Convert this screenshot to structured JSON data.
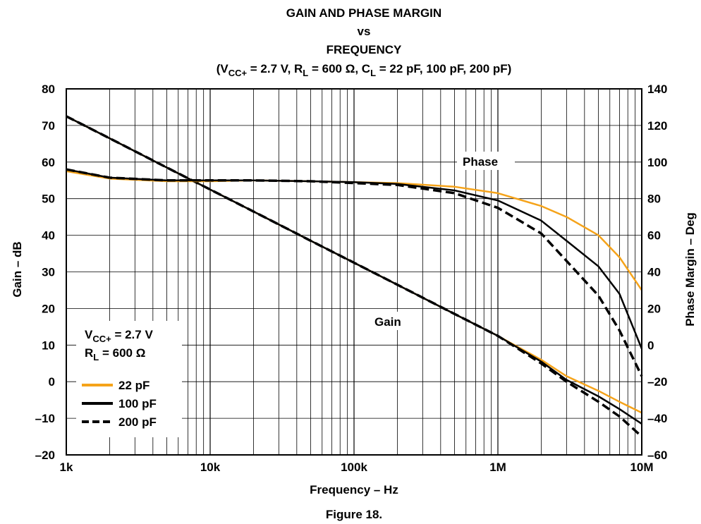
{
  "chart_data": {
    "type": "line",
    "title_lines": [
      "GAIN AND PHASE MARGIN",
      "vs",
      "FREQUENCY"
    ],
    "conditions": {
      "open": "(V",
      "vcc_sub": "CC+",
      "vcc_val": " = 2.7 V, R",
      "rl_sub": "L",
      "rl_val": " = 600 Ω, C",
      "cl_sub": "L",
      "cl_val": " = 22 pF, 100 pF, 200 pF)"
    },
    "xlabel": "Frequency – Hz",
    "ylabel_left": "Gain – dB",
    "ylabel_right": "Phase Margin – Deg",
    "figure_caption": "Figure 18.",
    "x_scale": "log",
    "xlim": [
      1000,
      10000000
    ],
    "ylim_left": [
      -20,
      80
    ],
    "ylim_right": [
      -60,
      140
    ],
    "x_ticks": [
      {
        "value": 1000,
        "label": "1k"
      },
      {
        "value": 10000,
        "label": "10k"
      },
      {
        "value": 100000,
        "label": "100k"
      },
      {
        "value": 1000000,
        "label": "1M"
      },
      {
        "value": 10000000,
        "label": "10M"
      }
    ],
    "left_ticks": [
      {
        "value": 80,
        "label": "80"
      },
      {
        "value": 70,
        "label": "70"
      },
      {
        "value": 60,
        "label": "60"
      },
      {
        "value": 50,
        "label": "50"
      },
      {
        "value": 40,
        "label": "40"
      },
      {
        "value": 30,
        "label": "30"
      },
      {
        "value": 20,
        "label": "20"
      },
      {
        "value": 10,
        "label": "10"
      },
      {
        "value": 0,
        "label": "0"
      },
      {
        "value": -10,
        "label": "–10"
      },
      {
        "value": -20,
        "label": "–20"
      }
    ],
    "right_ticks": [
      {
        "value": 140,
        "label": "140"
      },
      {
        "value": 120,
        "label": "120"
      },
      {
        "value": 100,
        "label": "100"
      },
      {
        "value": 80,
        "label": "80"
      },
      {
        "value": 60,
        "label": "60"
      },
      {
        "value": 40,
        "label": "40"
      },
      {
        "value": 20,
        "label": "20"
      },
      {
        "value": 0,
        "label": "0"
      },
      {
        "value": -20,
        "label": "–20"
      },
      {
        "value": -40,
        "label": "–40"
      },
      {
        "value": -60,
        "label": "–60"
      }
    ],
    "grid": true,
    "annotations": {
      "phase": "Phase",
      "gain": "Gain"
    },
    "note": {
      "vcc_prefix": "V",
      "vcc_sub": "CC+",
      "vcc_val": " = 2.7 V",
      "rl_prefix": "R",
      "rl_sub": "L",
      "rl_val": " = 600 Ω"
    },
    "legend_position": "bottom-left",
    "series": [
      {
        "name": "22 pF",
        "color": "#f5a31a",
        "dash": "solid",
        "axis": "left",
        "group": "gain",
        "x": [
          1000,
          2000,
          5000,
          10000,
          20000,
          50000,
          100000,
          200000,
          500000,
          1000000,
          2000000,
          3000000,
          5000000,
          7000000,
          10000000
        ],
        "y": [
          72.5,
          66.5,
          58.5,
          52.5,
          46.5,
          38.5,
          32.5,
          26.5,
          18.5,
          12.5,
          6.0,
          1.5,
          -2.5,
          -5.5,
          -8.5
        ]
      },
      {
        "name": "100 pF",
        "color": "#000000",
        "dash": "solid",
        "axis": "left",
        "group": "gain",
        "x": [
          1000,
          2000,
          5000,
          10000,
          20000,
          50000,
          100000,
          200000,
          500000,
          1000000,
          2000000,
          3000000,
          5000000,
          7000000,
          10000000
        ],
        "y": [
          72.5,
          66.5,
          58.5,
          52.5,
          46.5,
          38.5,
          32.5,
          26.5,
          18.5,
          12.5,
          5.5,
          0.5,
          -4.0,
          -7.5,
          -11.5
        ]
      },
      {
        "name": "200 pF",
        "color": "#000000",
        "dash": "dashed",
        "axis": "left",
        "group": "gain",
        "x": [
          1000,
          2000,
          5000,
          10000,
          20000,
          50000,
          100000,
          200000,
          500000,
          1000000,
          2000000,
          3000000,
          5000000,
          7000000,
          10000000
        ],
        "y": [
          72.5,
          66.5,
          58.5,
          52.5,
          46.5,
          38.5,
          32.5,
          26.5,
          18.5,
          12.5,
          5.0,
          0.0,
          -5.5,
          -9.5,
          -15.0
        ]
      },
      {
        "name": "22 pF",
        "color": "#f5a31a",
        "dash": "solid",
        "axis": "right",
        "group": "phase",
        "x": [
          1000,
          2000,
          5000,
          10000,
          20000,
          50000,
          100000,
          200000,
          500000,
          1000000,
          2000000,
          3000000,
          5000000,
          7000000,
          10000000
        ],
        "y": [
          95,
          91,
          89.5,
          89.5,
          90,
          89.5,
          89,
          88.5,
          86.5,
          83,
          76,
          70,
          60,
          48,
          30
        ]
      },
      {
        "name": "100 pF",
        "color": "#000000",
        "dash": "solid",
        "axis": "right",
        "group": "phase",
        "x": [
          1000,
          2000,
          5000,
          10000,
          20000,
          50000,
          100000,
          200000,
          500000,
          1000000,
          2000000,
          3000000,
          5000000,
          7000000,
          10000000
        ],
        "y": [
          96,
          91.5,
          90,
          90,
          90,
          89.5,
          89,
          88,
          84.5,
          79,
          68,
          57,
          43,
          28,
          -2
        ]
      },
      {
        "name": "200 pF",
        "color": "#000000",
        "dash": "dashed",
        "axis": "right",
        "group": "phase",
        "x": [
          1000,
          2000,
          5000,
          10000,
          20000,
          50000,
          100000,
          200000,
          500000,
          1000000,
          2000000,
          3000000,
          5000000,
          7000000,
          10000000
        ],
        "y": [
          96,
          91.5,
          90,
          90,
          90,
          89.5,
          88.5,
          87.5,
          83,
          75,
          61,
          46,
          27,
          8,
          -17
        ]
      }
    ]
  }
}
